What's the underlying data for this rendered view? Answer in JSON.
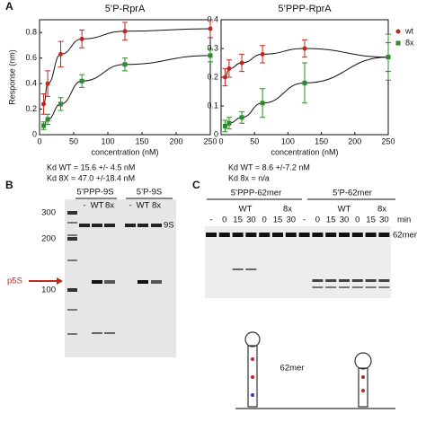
{
  "panel_labels": [
    "A",
    "B",
    "C"
  ],
  "chart_data": [
    {
      "type": "line",
      "title": "5’P-RprA",
      "y_label": "Response (nm)",
      "x_label": "concentration (nM)",
      "x": [
        6,
        12,
        31,
        62,
        125,
        250
      ],
      "xlim": [
        0,
        250
      ],
      "xticks": [
        0,
        50,
        100,
        150,
        200,
        250
      ],
      "ylim": [
        0,
        0.9
      ],
      "yticks": [
        0,
        0.2,
        0.4,
        0.6,
        0.8
      ],
      "series": [
        {
          "name": "wt",
          "color": "#c0281e",
          "marker": "circle",
          "values": [
            0.24,
            0.4,
            0.63,
            0.75,
            0.81,
            0.83
          ],
          "errors": [
            0.08,
            0.1,
            0.1,
            0.07,
            0.07,
            0.07
          ]
        },
        {
          "name": "8x",
          "color": "#2e8a2e",
          "marker": "square",
          "values": [
            0.07,
            0.12,
            0.24,
            0.42,
            0.55,
            0.62
          ],
          "errors": [
            0.03,
            0.04,
            0.05,
            0.05,
            0.05,
            0.05
          ]
        }
      ],
      "annotations": [
        "Kd WT = 15.6 +/- 4.5 nM",
        "Kd 8X = 47.0 +/-18.4 nM"
      ]
    },
    {
      "type": "line",
      "title": "5’PPP-RprA",
      "x_label": "concentration (nM)",
      "x": [
        6,
        12,
        31,
        62,
        125,
        250
      ],
      "xlim": [
        0,
        250
      ],
      "xticks": [
        0,
        50,
        100,
        150,
        200,
        250
      ],
      "ylim": [
        0,
        0.4
      ],
      "yticks": [
        0,
        0.1,
        0.2,
        0.3,
        0.4
      ],
      "series": [
        {
          "name": "wt",
          "color": "#c0281e",
          "marker": "circle",
          "values": [
            0.2,
            0.23,
            0.25,
            0.28,
            0.3,
            0.27
          ],
          "errors": [
            0.03,
            0.03,
            0.03,
            0.03,
            0.03,
            0.05
          ]
        },
        {
          "name": "8x",
          "color": "#2e8a2e",
          "marker": "square",
          "values": [
            0.03,
            0.04,
            0.06,
            0.11,
            0.18,
            0.27
          ],
          "errors": [
            0.02,
            0.02,
            0.02,
            0.05,
            0.07,
            0.08
          ]
        }
      ],
      "legend": "right",
      "annotations": [
        "Kd WT = 8.6 +/-7.2 nM",
        "Kd 8x = n/a"
      ]
    }
  ],
  "gel_b": {
    "markers": [
      300,
      200,
      100
    ],
    "groups": [
      "5’PPP-9S",
      "5’P-9S"
    ],
    "lanes": [
      "-",
      "WT",
      "8x",
      "-",
      "WT",
      "8x"
    ],
    "band_label": "9S",
    "arrow_label": "p5S"
  },
  "gel_c": {
    "groups": [
      "5’PPP-62mer",
      "5’P-62mer"
    ],
    "subgroups": [
      "WT",
      "8x",
      "WT",
      "8x"
    ],
    "lanes": [
      "-",
      "0",
      "15",
      "30",
      "0",
      "15",
      "30",
      "-",
      "0",
      "15",
      "30",
      "0",
      "15",
      "30"
    ],
    "unit": "min",
    "band_label": "62mer"
  },
  "structure_label": "62mer"
}
